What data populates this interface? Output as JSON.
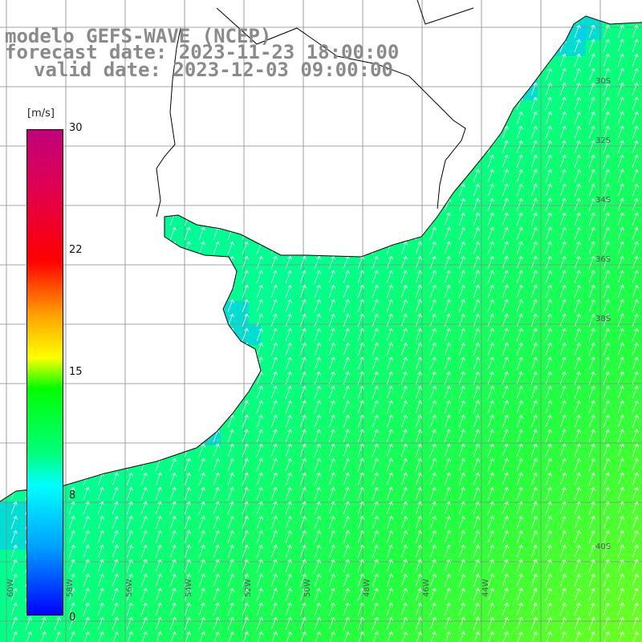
{
  "title": {
    "line1": "modelo GEFS-WAVE (NCEP)",
    "line2": "forecast date: 2023-11-23 18:00:00",
    "line3": "valid date: 2023-12-03 09:00:00"
  },
  "colorbar": {
    "unit": "[m/s]",
    "ticks": [
      {
        "label": "30",
        "value": 30
      },
      {
        "label": "22",
        "value": 22
      },
      {
        "label": "15",
        "value": 15
      },
      {
        "label": "8",
        "value": 8
      },
      {
        "label": "0",
        "value": 0
      }
    ],
    "colors": {
      "0": "#0000ff",
      "8": "#00ffff",
      "15": "#00ff00",
      "22": "#ff8000",
      "30": "#c0007a"
    }
  },
  "axes": {
    "lat_labels": [
      "30S",
      "32S",
      "34S",
      "36S",
      "38S",
      "40S"
    ],
    "lon_labels": [
      "60W",
      "58W",
      "56W",
      "54W",
      "52W",
      "50W",
      "48W",
      "46W",
      "44W"
    ]
  },
  "field": {
    "variable": "wind speed",
    "units": "m/s",
    "typical_speed_range": [
      7,
      13
    ],
    "wind_direction": "from south-southwest, blowing toward north-northeast",
    "land_color": "#ffffff",
    "grid_color": "#888888"
  }
}
